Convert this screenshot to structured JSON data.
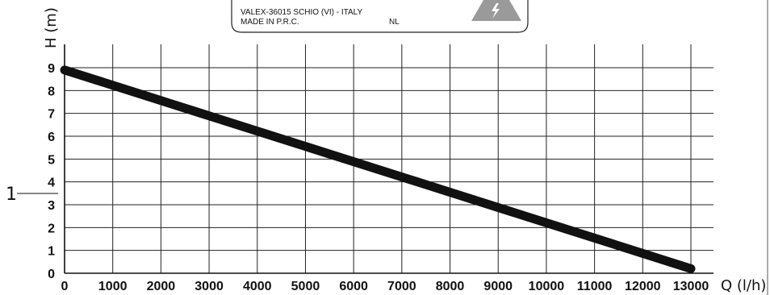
{
  "nameplate": {
    "address_line": "VALEX-36015 SCHIO (VI) - ITALY",
    "origin_line": "MADE IN P.R.C.",
    "lang_code": "NL",
    "warning_icon": "high-voltage-warning-icon"
  },
  "callout": {
    "label": "1"
  },
  "chart_data": {
    "type": "line",
    "xlabel": "Q (l/h)",
    "ylabel": "H (m)",
    "xlim": [
      0,
      13000
    ],
    "ylim": [
      0,
      9
    ],
    "x_ticks": [
      0,
      1000,
      2000,
      3000,
      4000,
      5000,
      6000,
      7000,
      8000,
      9000,
      10000,
      11000,
      12000,
      13000
    ],
    "x_tick_labels": [
      "0",
      "1000",
      "2000",
      "3000",
      "4000",
      "5000",
      "6000",
      "7000",
      "8000",
      "9000",
      "10000",
      "11000",
      "12000",
      "13000"
    ],
    "y_ticks": [
      0,
      1,
      2,
      3,
      4,
      5,
      6,
      7,
      8,
      9
    ],
    "y_tick_labels": [
      "0",
      "1",
      "2",
      "3",
      "4",
      "5",
      "6",
      "7",
      "8",
      "9"
    ],
    "grid": true,
    "series": [
      {
        "x": [
          0,
          13000
        ],
        "y": [
          8.9,
          0.2
        ],
        "color": "#111111"
      }
    ]
  }
}
